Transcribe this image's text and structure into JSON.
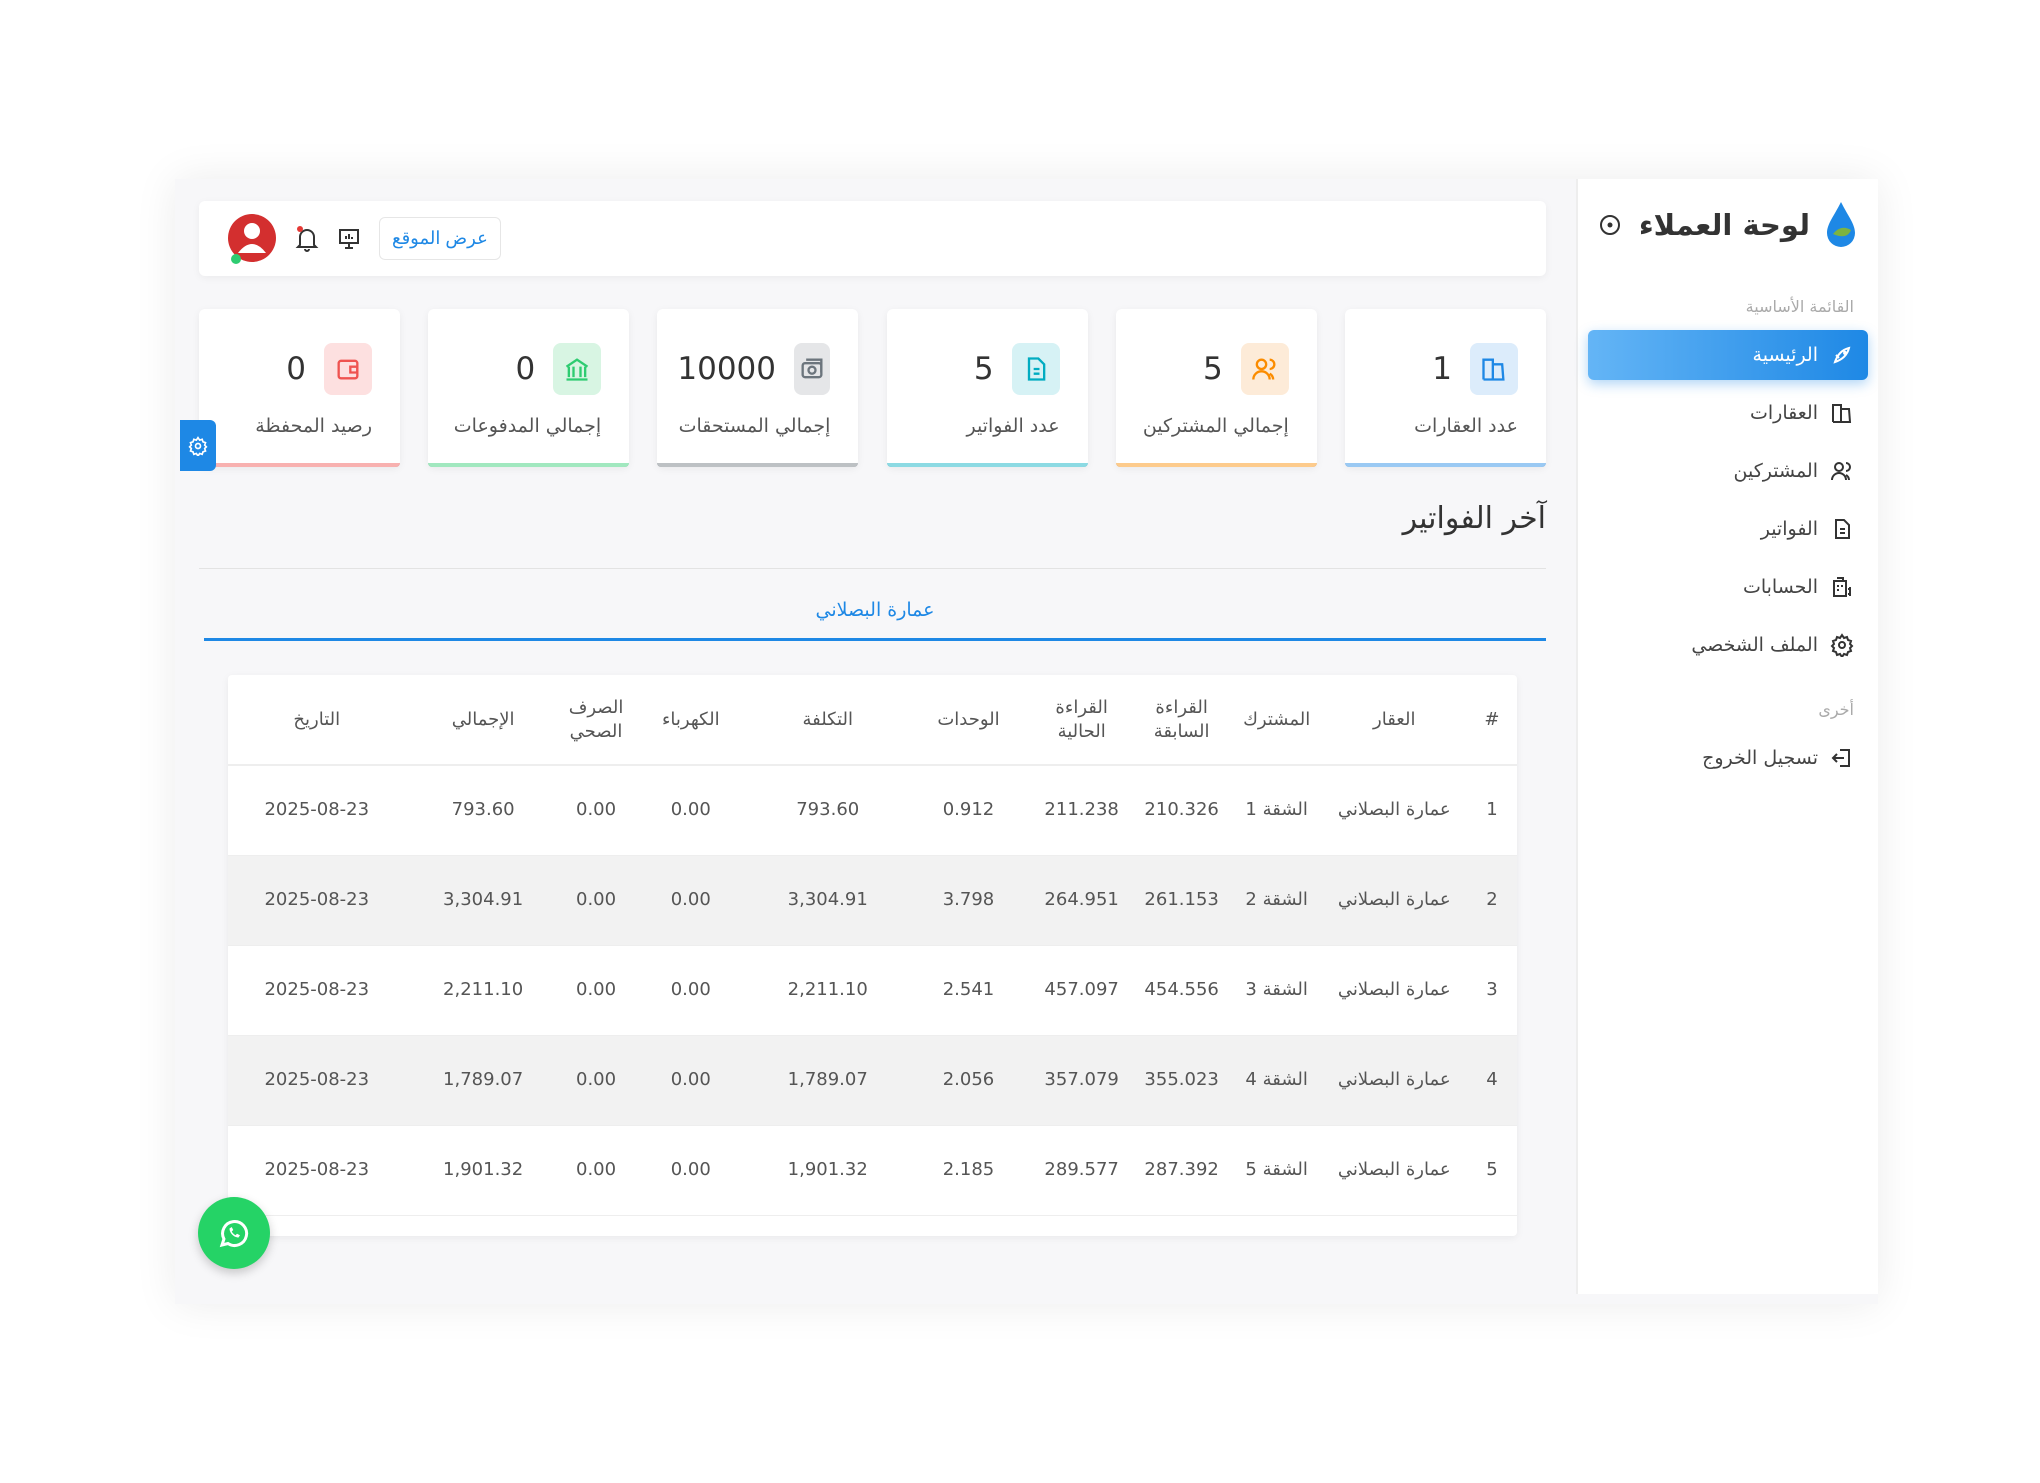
{
  "sidebar": {
    "brand_title": "لوحة العملاء",
    "section_main": "القائمة الأساسية",
    "items": [
      {
        "label": "الرئيسية",
        "icon": "rocket-icon",
        "active": true
      },
      {
        "label": "العقارات",
        "icon": "building-icon"
      },
      {
        "label": "المشتركين",
        "icon": "users-icon"
      },
      {
        "label": "الفواتير",
        "icon": "file-icon"
      },
      {
        "label": "الحسابات",
        "icon": "calculator-dollar-icon"
      },
      {
        "label": "الملف الشخصي",
        "icon": "gear-icon"
      }
    ],
    "section_other": "أخرى",
    "logout": "تسجيل الخروج"
  },
  "header": {
    "view_site": "عرض الموقع"
  },
  "cards": [
    {
      "label": "عدد العقارات",
      "value": "1",
      "color": "#1e88e5",
      "bg": "#dcecfb"
    },
    {
      "label": "إجمالي المشتركين",
      "value": "5",
      "color": "#fb8c00",
      "bg": "#fdebd8"
    },
    {
      "label": "عدد الفواتير",
      "value": "5",
      "color": "#00acc1",
      "bg": "#d6f2f5"
    },
    {
      "label": "إجمالي المستحقات",
      "value": "10000",
      "color": "#6c757d",
      "bg": "#e5e6e8"
    },
    {
      "label": "إجمالي المدفوعات",
      "value": "0",
      "color": "#2ecc71",
      "bg": "#d8f5e3"
    },
    {
      "label": "رصيد المحفظة",
      "value": "0",
      "color": "#ef5350",
      "bg": "#fde0e0"
    }
  ],
  "section_title": "آخر الفواتير",
  "tab_label": "عمارة البصلاني",
  "table": {
    "headers": [
      "#",
      "العقار",
      "المشترك",
      "القراءة السابقة",
      "القراءة الحالية",
      "الوحدات",
      "التكلفة",
      "الكهرباء",
      "الصرف الصحي",
      "الإجمالي",
      "التاريخ"
    ],
    "rows": [
      [
        "1",
        "عمارة البصلاني",
        "الشقة 1",
        "210.326",
        "211.238",
        "0.912",
        "793.60",
        "0.00",
        "0.00",
        "793.60",
        "2025-08-23"
      ],
      [
        "2",
        "عمارة البصلاني",
        "الشقة 2",
        "261.153",
        "264.951",
        "3.798",
        "3,304.91",
        "0.00",
        "0.00",
        "3,304.91",
        "2025-08-23"
      ],
      [
        "3",
        "عمارة البصلاني",
        "الشقة 3",
        "454.556",
        "457.097",
        "2.541",
        "2,211.10",
        "0.00",
        "0.00",
        "2,211.10",
        "2025-08-23"
      ],
      [
        "4",
        "عمارة البصلاني",
        "الشقة 4",
        "355.023",
        "357.079",
        "2.056",
        "1,789.07",
        "0.00",
        "0.00",
        "1,789.07",
        "2025-08-23"
      ],
      [
        "5",
        "عمارة البصلاني",
        "الشقة 5",
        "287.392",
        "289.577",
        "2.185",
        "1,901.32",
        "0.00",
        "0.00",
        "1,901.32",
        "2025-08-23"
      ]
    ]
  }
}
